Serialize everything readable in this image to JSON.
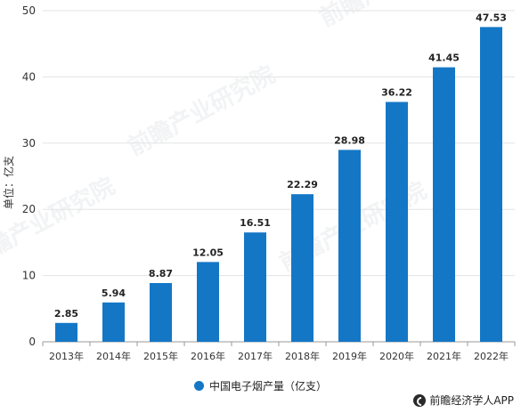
{
  "chart_data": {
    "type": "bar",
    "categories": [
      "2013年",
      "2014年",
      "2015年",
      "2016年",
      "2017年",
      "2018年",
      "2019年",
      "2020年",
      "2021年",
      "2022年"
    ],
    "values": [
      2.85,
      5.94,
      8.87,
      12.05,
      16.51,
      22.29,
      28.98,
      36.22,
      41.45,
      47.53
    ],
    "value_labels": [
      "2.85",
      "5.94",
      "8.87",
      "12.05",
      "16.51",
      "22.29",
      "28.98",
      "36.22",
      "41.45",
      "47.53"
    ],
    "y_ticks": [
      0,
      10,
      20,
      30,
      40,
      50
    ],
    "ylim": [
      0,
      50
    ],
    "ylabel": "单位：亿支",
    "xlabel": "",
    "title": "",
    "legend": {
      "label": "中国电子烟产量（亿支）",
      "placement": "bottom"
    },
    "grid": true,
    "bar_color": "#1477c6"
  },
  "watermark": "前瞻产业研究院",
  "credit": "前瞻经济学人APP"
}
